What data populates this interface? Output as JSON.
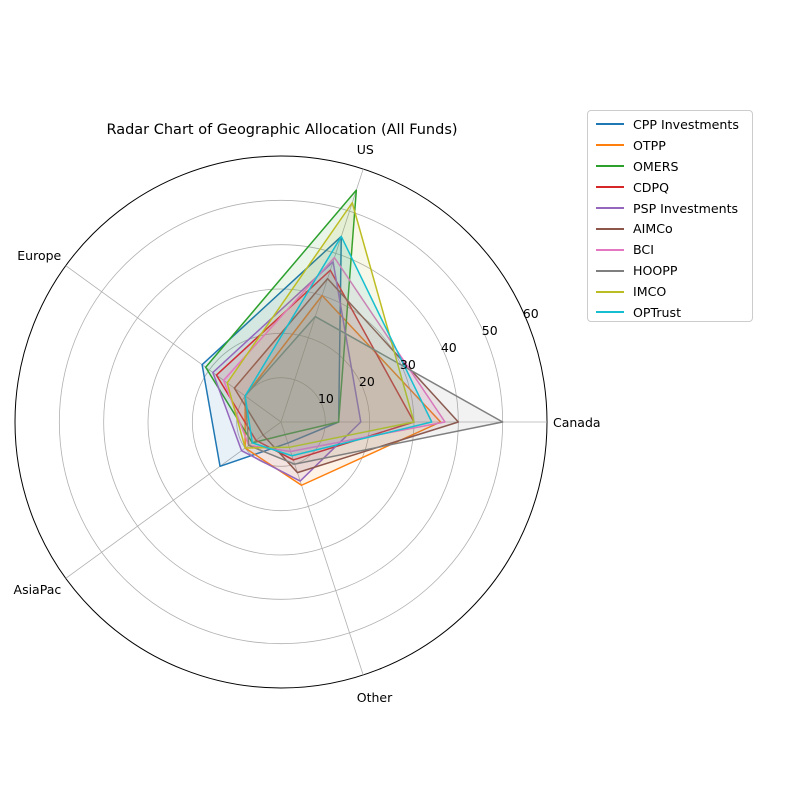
{
  "chart_data": {
    "type": "radar",
    "title": "Radar Chart of Geographic Allocation (All Funds)",
    "axes": [
      "Canada",
      "US",
      "Europe",
      "AsiaPac",
      "Other"
    ],
    "rlim": [
      0,
      60
    ],
    "radial_ticks": [
      10,
      20,
      30,
      40,
      50,
      60
    ],
    "radial_tick_labels": [
      "10",
      "20",
      "30",
      "40",
      "50",
      "60"
    ],
    "grid": true,
    "legend_position": "outside-top-right",
    "series": [
      {
        "name": "CPP Investments",
        "color": "#1f77b4",
        "values": [
          13,
          44,
          22,
          17,
          5
        ]
      },
      {
        "name": "OTPP",
        "color": "#ff7f0e",
        "values": [
          36,
          30,
          10,
          10,
          15
        ]
      },
      {
        "name": "OMERS",
        "color": "#2ca02c",
        "values": [
          13,
          55,
          21,
          8,
          3
        ]
      },
      {
        "name": "CDPQ",
        "color": "#d62728",
        "values": [
          30,
          36,
          18,
          7,
          9
        ]
      },
      {
        "name": "PSP Investments",
        "color": "#9467bd",
        "values": [
          18,
          38,
          19,
          11,
          14
        ]
      },
      {
        "name": "AIMCo",
        "color": "#8c564b",
        "values": [
          40,
          34,
          13,
          5,
          12
        ]
      },
      {
        "name": "BCI",
        "color": "#e377c2",
        "values": [
          37,
          39,
          16,
          9,
          7
        ]
      },
      {
        "name": "HOOPP",
        "color": "#7f7f7f",
        "values": [
          50,
          25,
          10,
          9,
          10
        ]
      },
      {
        "name": "IMCO",
        "color": "#bcbd22",
        "values": [
          30,
          52,
          15,
          10,
          6
        ]
      },
      {
        "name": "OPTrust",
        "color": "#17becf",
        "values": [
          34,
          44,
          10,
          8,
          8
        ]
      }
    ]
  }
}
